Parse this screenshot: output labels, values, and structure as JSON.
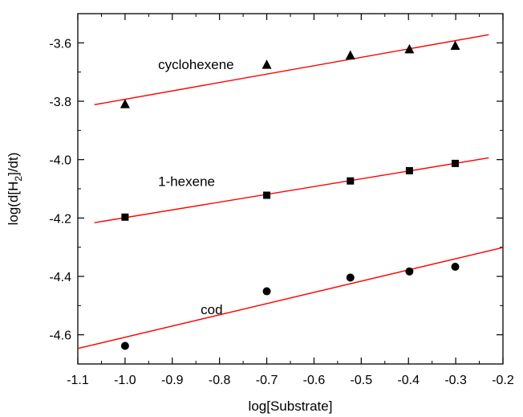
{
  "chart_data": {
    "type": "scatter",
    "title": "",
    "xlabel": "log[Substrate]",
    "ylabel_parts": {
      "pre": "log(d[H",
      "sub": "2",
      "post": "]/dt)"
    },
    "xlim": [
      -1.1,
      -0.2
    ],
    "ylim": [
      -4.7,
      -3.5
    ],
    "xticks": [
      -1.1,
      -1.0,
      -0.9,
      -0.8,
      -0.7,
      -0.6,
      -0.5,
      -0.4,
      -0.3,
      -0.2
    ],
    "xtick_labels": [
      "-1.1",
      "-1.0",
      "-0.9",
      "-0.8",
      "-0.7",
      "-0.6",
      "-0.5",
      "-0.4",
      "-0.3",
      "-0.2"
    ],
    "yticks": [
      -4.6,
      -4.4,
      -4.2,
      -4.0,
      -3.8,
      -3.6
    ],
    "ytick_labels": [
      "-4.6",
      "-4.4",
      "-4.2",
      "-4.0",
      "-3.8",
      "-3.6"
    ],
    "grid": false,
    "fit_color": "#ff0000",
    "marker_color": "#000000",
    "series": [
      {
        "name": "cyclohexene",
        "marker": "triangle",
        "x": [
          -1.0,
          -0.7,
          -0.523,
          -0.398,
          -0.301
        ],
        "y": [
          -3.81,
          -3.675,
          -3.643,
          -3.622,
          -3.61
        ],
        "fit": {
          "x": [
            -1.065,
            -0.23
          ],
          "y": [
            -3.812,
            -3.572
          ]
        },
        "label_pos": {
          "x": -0.93,
          "y": -3.69
        }
      },
      {
        "name": "1-hexene",
        "marker": "square",
        "x": [
          -1.0,
          -0.7,
          -0.523,
          -0.398,
          -0.301
        ],
        "y": [
          -4.197,
          -4.122,
          -4.073,
          -4.038,
          -4.013
        ],
        "fit": {
          "x": [
            -1.065,
            -0.23
          ],
          "y": [
            -4.216,
            -3.994
          ]
        },
        "label_pos": {
          "x": -0.93,
          "y": -4.09
        }
      },
      {
        "name": "cod",
        "marker": "circle",
        "x": [
          -1.0,
          -0.7,
          -0.523,
          -0.398,
          -0.301
        ],
        "y": [
          -4.638,
          -4.451,
          -4.404,
          -4.383,
          -4.367
        ],
        "fit": {
          "x": [
            -1.1,
            -0.2
          ],
          "y": [
            -4.647,
            -4.301
          ]
        },
        "label_pos": {
          "x": -0.84,
          "y": -4.53
        }
      }
    ]
  }
}
